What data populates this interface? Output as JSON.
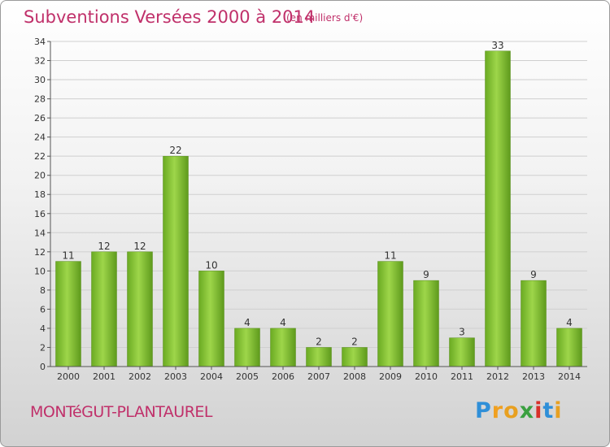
{
  "chart_data": {
    "type": "bar",
    "title": "Subventions Versées 2000 à 2014",
    "subtitle": "(en milliers d'€)",
    "categories": [
      "2000",
      "2001",
      "2002",
      "2003",
      "2004",
      "2005",
      "2006",
      "2007",
      "2008",
      "2009",
      "2010",
      "2011",
      "2012",
      "2013",
      "2014"
    ],
    "values": [
      11,
      12,
      12,
      22,
      10,
      4,
      4,
      2,
      2,
      11,
      9,
      3,
      33,
      9,
      4
    ],
    "ylim": [
      0,
      34
    ],
    "yticks": [
      0,
      2,
      4,
      6,
      8,
      10,
      12,
      14,
      16,
      18,
      20,
      22,
      24,
      26,
      28,
      30,
      32,
      34
    ],
    "grid": true,
    "bar_color": "#7cc033"
  },
  "commune": "MONTéGUT-PLANTAUREL",
  "logo": {
    "letters": [
      "P",
      "r",
      "o",
      "x",
      "i",
      "t",
      "i"
    ],
    "colors": [
      "#2f8fd8",
      "#f0a020",
      "#e8a020",
      "#3aa040",
      "#d8302a",
      "#2f8fd8",
      "#e8a020"
    ]
  },
  "colors": {
    "title": "#c0306a",
    "grid": "#cfcfcf",
    "axis": "#555555"
  }
}
